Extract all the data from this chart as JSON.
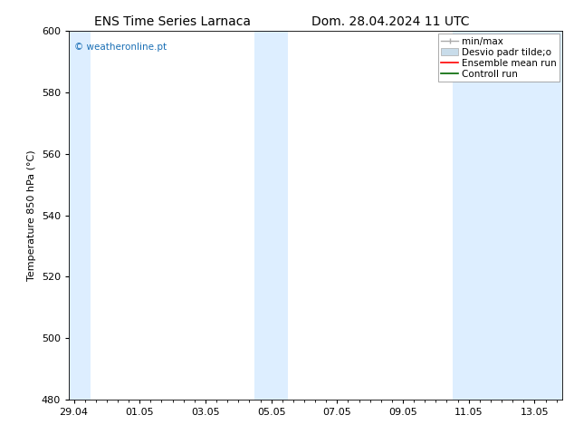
{
  "title_left": "ENS Time Series Larnaca",
  "title_right": "Dom. 28.04.2024 11 UTC",
  "ylabel": "Temperature 850 hPa (°C)",
  "ylim": [
    480,
    600
  ],
  "yticks": [
    480,
    500,
    520,
    540,
    560,
    580,
    600
  ],
  "xtick_labels": [
    "29.04",
    "01.05",
    "03.05",
    "05.05",
    "07.05",
    "09.05",
    "11.05",
    "13.05"
  ],
  "xtick_positions": [
    0,
    2,
    4,
    6,
    8,
    10,
    12,
    14
  ],
  "xlim": [
    -0.15,
    14.85
  ],
  "shade_bands": [
    {
      "start": -0.15,
      "end": 0.5
    },
    {
      "start": 5.5,
      "end": 6.5
    },
    {
      "start": 11.5,
      "end": 14.85
    }
  ],
  "shade_color": "#ddeeff",
  "watermark": "© weatheronline.pt",
  "watermark_color": "#1a6fb5",
  "legend_labels": [
    "min/max",
    "Desvio padr tilde;o",
    "Ensemble mean run",
    "Controll run"
  ],
  "legend_colors": [
    "#aaaaaa",
    "#c8dcea",
    "#ff0000",
    "#006600"
  ],
  "background_color": "#ffffff",
  "title_fontsize": 10,
  "tick_fontsize": 8,
  "ylabel_fontsize": 8,
  "legend_fontsize": 7.5
}
